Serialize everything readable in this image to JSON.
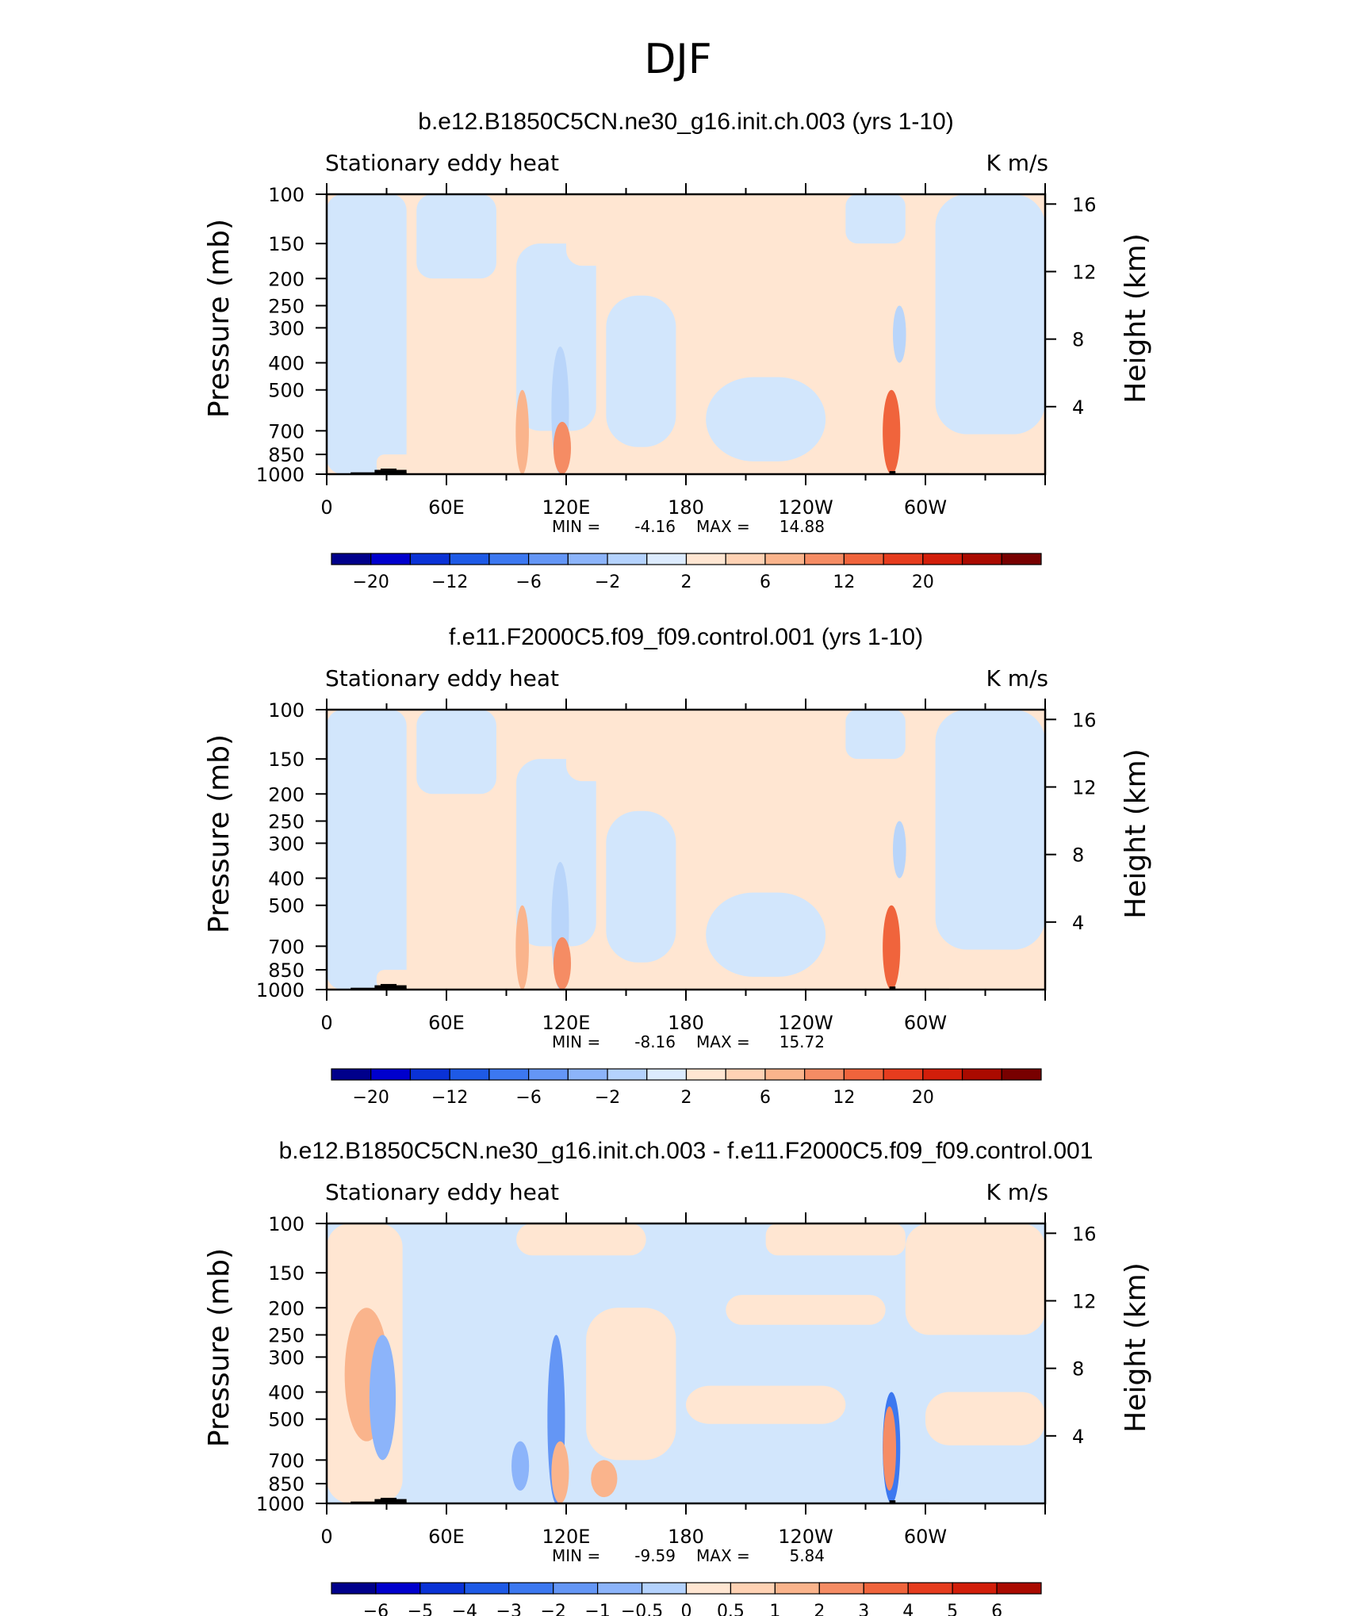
{
  "page": {
    "season_title": "DJF"
  },
  "palettes": {
    "full": [
      "#00008b",
      "#0000cd",
      "#0a32d6",
      "#1e5ae6",
      "#3c78f0",
      "#6496f5",
      "#8cb4fa",
      "#b4d2fd",
      "#dcebfe",
      "#ffe6d2",
      "#ffd2b4",
      "#fab48c",
      "#f58c64",
      "#f0643c",
      "#e63c1e",
      "#d21e0a",
      "#aa0a00",
      "#780000"
    ],
    "positive": [
      "#ffe6d2",
      "#ffd2b4",
      "#fab48c",
      "#f58c64",
      "#f0643c",
      "#e63c1e",
      "#d21e0a",
      "#aa0a00",
      "#780000"
    ]
  },
  "shared": {
    "field_label": "Stationary eddy heat",
    "units": "K m/s",
    "ylabel_left": "Pressure (mb)",
    "ylabel_right": "Height (km)",
    "pressure_ticks": [
      "100",
      "150",
      "200",
      "250",
      "300",
      "400",
      "500",
      "700",
      "850",
      "1000"
    ],
    "height_ticks": [
      "16",
      "12",
      "8",
      "4"
    ],
    "lon_ticks": [
      "0",
      "60E",
      "120E",
      "180",
      "120W",
      "60W"
    ],
    "min_label": "MIN =",
    "max_label": "MAX ="
  },
  "chart_data": [
    {
      "type": "heatmap",
      "title": "b.e12.B1850C5CN.ne30_g16.init.ch.003 (yrs 1-10)",
      "x": "longitude",
      "xlim": [
        0,
        360
      ],
      "y": "pressure (mb)",
      "ylim": [
        1000,
        100
      ],
      "y_scale": "log",
      "min": "-4.16",
      "max": "14.88",
      "colorbar": {
        "labels": [
          "-20",
          "-12",
          "-6",
          "-2",
          "2",
          "6",
          "12",
          "20"
        ]
      },
      "grid": false
    },
    {
      "type": "heatmap",
      "title": "f.e11.F2000C5.f09_f09.control.001 (yrs 1-10)",
      "x": "longitude",
      "xlim": [
        0,
        360
      ],
      "y": "pressure (mb)",
      "ylim": [
        1000,
        100
      ],
      "y_scale": "log",
      "min": "-8.16",
      "max": "15.72",
      "colorbar": {
        "labels": [
          "-20",
          "-12",
          "-6",
          "-2",
          "2",
          "6",
          "12",
          "20"
        ]
      },
      "grid": false
    },
    {
      "type": "heatmap",
      "title": "b.e12.B1850C5CN.ne30_g16.init.ch.003 - f.e11.F2000C5.f09_f09.control.001",
      "x": "longitude",
      "xlim": [
        0,
        360
      ],
      "y": "pressure (mb)",
      "ylim": [
        1000,
        100
      ],
      "y_scale": "log",
      "min": "-9.59",
      "max": "5.84",
      "colorbar": {
        "labels": [
          "-6",
          "-5",
          "-4",
          "-3",
          "-2",
          "-1",
          "-0.5",
          "0",
          "0.5",
          "1",
          "2",
          "3",
          "4",
          "5",
          "6"
        ]
      },
      "grid": false
    }
  ]
}
